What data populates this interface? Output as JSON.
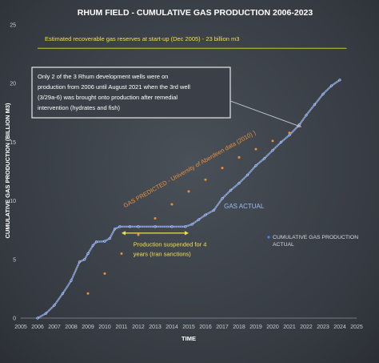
{
  "chart_data": {
    "type": "scatter",
    "title": "RHUM FIELD  - CUMULATIVE GAS PRODUCTION  2006-2023",
    "xlabel": "TIME",
    "ylabel": "CUMULATIVE GAS PRODUCTION (BILLION M3)",
    "xlim": [
      2005,
      2025
    ],
    "ylim": [
      0,
      25
    ],
    "x_ticks": [
      "2005",
      "2006",
      "2007",
      "2008",
      "2009",
      "2010",
      "2011",
      "2012",
      "2013",
      "2014",
      "2015",
      "2016",
      "2017",
      "2018",
      "2019",
      "2020",
      "2021",
      "2022",
      "2023",
      "2024",
      "2025"
    ],
    "y_ticks": [
      "0",
      "5",
      "10",
      "15",
      "20",
      "25"
    ],
    "grid": false,
    "legend_position": "right",
    "reference_line": {
      "y": 23,
      "label": "Estimated recoverable  gas reserves at start-up (Dec 2005) - 23 billion m3",
      "color": "#c8c832"
    },
    "series": [
      {
        "name": "CUMULATIVE GAS PRODUCTION ACTUAL",
        "color": "#4f7fe6",
        "points": [
          [
            2006.0,
            0.0
          ],
          [
            2006.5,
            0.4
          ],
          [
            2007.0,
            1.1
          ],
          [
            2007.5,
            2.1
          ],
          [
            2008.0,
            3.2
          ],
          [
            2008.5,
            4.8
          ],
          [
            2008.8,
            5.0
          ],
          [
            2009.0,
            5.5
          ],
          [
            2009.3,
            6.2
          ],
          [
            2009.5,
            6.5
          ],
          [
            2010.0,
            6.55
          ],
          [
            2010.3,
            6.8
          ],
          [
            2010.6,
            7.6
          ],
          [
            2010.9,
            7.8
          ],
          [
            2011.5,
            7.8
          ],
          [
            2012.0,
            7.8
          ],
          [
            2013.0,
            7.8
          ],
          [
            2014.0,
            7.8
          ],
          [
            2014.8,
            7.8
          ],
          [
            2015.2,
            8.0
          ],
          [
            2015.6,
            8.4
          ],
          [
            2016.0,
            8.8
          ],
          [
            2016.5,
            9.2
          ],
          [
            2017.0,
            10.2
          ],
          [
            2017.5,
            10.9
          ],
          [
            2018.0,
            11.5
          ],
          [
            2018.5,
            12.2
          ],
          [
            2019.0,
            13.0
          ],
          [
            2019.5,
            13.6
          ],
          [
            2020.0,
            14.3
          ],
          [
            2020.5,
            15.0
          ],
          [
            2021.0,
            15.6
          ],
          [
            2021.6,
            16.5
          ],
          [
            2022.0,
            17.3
          ],
          [
            2022.5,
            18.2
          ],
          [
            2023.0,
            19.1
          ],
          [
            2023.5,
            19.8
          ],
          [
            2024.0,
            20.3
          ]
        ]
      },
      {
        "name": "GAS PREDICTED",
        "color": "#e8903a",
        "points": [
          [
            2009,
            2.1
          ],
          [
            2010,
            3.8
          ],
          [
            2011,
            5.5
          ],
          [
            2012,
            7.1
          ],
          [
            2013,
            8.5
          ],
          [
            2014,
            9.7
          ],
          [
            2015,
            10.8
          ],
          [
            2016,
            11.8
          ],
          [
            2017,
            12.8
          ],
          [
            2018,
            13.7
          ],
          [
            2019,
            14.4
          ],
          [
            2020,
            15.1
          ],
          [
            2021,
            15.8
          ]
        ]
      }
    ],
    "annotations": {
      "wells_note": [
        "Only 2 of the 3 Rhum development wells were on",
        "production from 2006 until August 2021 when the 3rd well",
        "(3/29a-6) was brought onto production after remedial",
        "intervention (hydrates and fish)"
      ],
      "suspension_note": [
        "Production suspended for 4",
        "years (Iran sanctions)"
      ],
      "suspension_span": [
        2011,
        2015
      ],
      "suspension_level": 7.25,
      "predicted_label": "GAS PREDICTED  - University of Aberdeen data (2010)  )",
      "actual_label": "GAS ACTUAL",
      "arrow_target": [
        2021.7,
        16.3
      ]
    }
  }
}
